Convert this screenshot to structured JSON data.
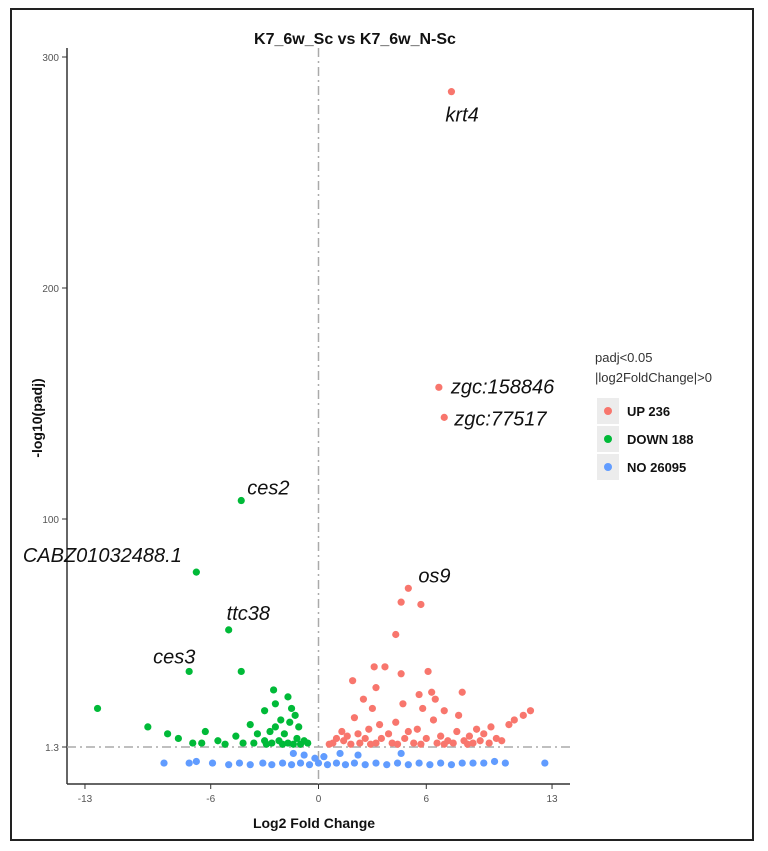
{
  "chart_data": {
    "type": "scatter",
    "title": "K7_6w_Sc vs K7_6w_N-Sc",
    "xlabel": "Log2 Fold Change",
    "ylabel": "-log10(padj)",
    "xlim": [
      -14,
      14
    ],
    "ylim": [
      -1,
      302
    ],
    "x_ticks": [
      -13,
      -6,
      0,
      6,
      13
    ],
    "y_ticks": [
      1.3,
      100,
      200,
      300
    ],
    "reference_lines": {
      "x": 0,
      "y": 1.3
    },
    "grid": false,
    "legend": {
      "placement": "right",
      "title_lines": [
        "padj<0.05",
        "|log2FoldChange|>0"
      ],
      "entries": [
        {
          "label": "UP 236",
          "color": "#F8766D"
        },
        {
          "label": "DOWN 188",
          "color": "#00BA38"
        },
        {
          "label": "NO 26095",
          "color": "#619CFF"
        }
      ]
    },
    "series": [
      {
        "name": "UP 236",
        "color": "#F8766D",
        "points": [
          [
            7.4,
            285
          ],
          [
            6.7,
            157
          ],
          [
            7.0,
            144
          ],
          [
            5.0,
            70
          ],
          [
            4.6,
            64
          ],
          [
            5.7,
            63
          ],
          [
            4.3,
            50
          ],
          [
            3.7,
            36
          ],
          [
            4.6,
            33
          ],
          [
            6.1,
            34
          ],
          [
            3.1,
            36
          ],
          [
            5.6,
            24
          ],
          [
            6.3,
            25
          ],
          [
            8.0,
            25
          ],
          [
            3.2,
            27
          ],
          [
            6.5,
            22
          ],
          [
            1.9,
            30
          ],
          [
            2.5,
            22
          ],
          [
            3.0,
            18
          ],
          [
            4.7,
            20
          ],
          [
            5.8,
            18
          ],
          [
            7.0,
            17
          ],
          [
            7.8,
            15
          ],
          [
            2.0,
            14
          ],
          [
            3.4,
            11
          ],
          [
            4.3,
            12
          ],
          [
            6.4,
            13
          ],
          [
            8.8,
            9
          ],
          [
            9.6,
            10
          ],
          [
            10.9,
            13
          ],
          [
            10.6,
            11
          ],
          [
            11.8,
            17
          ],
          [
            11.4,
            15
          ],
          [
            1.3,
            8
          ],
          [
            2.2,
            7
          ],
          [
            2.8,
            9
          ],
          [
            3.9,
            7
          ],
          [
            5.0,
            8
          ],
          [
            5.5,
            9
          ],
          [
            6.8,
            6
          ],
          [
            7.7,
            8
          ],
          [
            8.4,
            6
          ],
          [
            9.2,
            7
          ],
          [
            9.9,
            5
          ],
          [
            1.0,
            5
          ],
          [
            1.6,
            6
          ],
          [
            2.6,
            5
          ],
          [
            3.5,
            5
          ],
          [
            4.8,
            5
          ],
          [
            6.0,
            5
          ],
          [
            7.2,
            4
          ],
          [
            8.1,
            4
          ],
          [
            9.0,
            4
          ],
          [
            0.8,
            3
          ],
          [
            1.4,
            4
          ],
          [
            2.3,
            3
          ],
          [
            3.2,
            3
          ],
          [
            4.1,
            3
          ],
          [
            5.3,
            3
          ],
          [
            6.6,
            3
          ],
          [
            7.5,
            3
          ],
          [
            8.6,
            3
          ],
          [
            9.5,
            3
          ],
          [
            10.2,
            4
          ],
          [
            0.6,
            2.5
          ],
          [
            1.8,
            2.5
          ],
          [
            2.9,
            2.5
          ],
          [
            4.4,
            2.5
          ],
          [
            5.7,
            2.5
          ],
          [
            7.0,
            2.5
          ],
          [
            8.3,
            2.5
          ]
        ]
      },
      {
        "name": "DOWN 188",
        "color": "#00BA38",
        "points": [
          [
            -4.3,
            108
          ],
          [
            -6.8,
            77
          ],
          [
            -5.0,
            52
          ],
          [
            -7.2,
            34
          ],
          [
            -4.3,
            34
          ],
          [
            -12.3,
            18
          ],
          [
            -9.5,
            10
          ],
          [
            -8.4,
            7
          ],
          [
            -7.8,
            5
          ],
          [
            -2.5,
            26
          ],
          [
            -1.7,
            23
          ],
          [
            -2.4,
            20
          ],
          [
            -1.5,
            18
          ],
          [
            -3.0,
            17
          ],
          [
            -1.3,
            15
          ],
          [
            -2.1,
            13
          ],
          [
            -1.6,
            12
          ],
          [
            -2.4,
            10
          ],
          [
            -1.1,
            10
          ],
          [
            -3.8,
            11
          ],
          [
            -2.7,
            8
          ],
          [
            -3.4,
            7
          ],
          [
            -1.9,
            7
          ],
          [
            -4.6,
            6
          ],
          [
            -6.3,
            8
          ],
          [
            -5.6,
            4
          ],
          [
            -6.5,
            3
          ],
          [
            -1.2,
            5
          ],
          [
            -0.8,
            4
          ],
          [
            -2.2,
            4
          ],
          [
            -3.0,
            4
          ],
          [
            -1.7,
            3
          ],
          [
            -2.6,
            3
          ],
          [
            -3.6,
            3
          ],
          [
            -4.2,
            3
          ],
          [
            -1.0,
            2.5
          ],
          [
            -1.4,
            2.5
          ],
          [
            -2.0,
            2.5
          ],
          [
            -2.9,
            2.5
          ],
          [
            -0.6,
            3
          ],
          [
            -7.0,
            3
          ],
          [
            -5.2,
            2.5
          ]
        ]
      },
      {
        "name": "NO 26095",
        "color": "#619CFF",
        "points": [
          [
            -8.6,
            0.3
          ],
          [
            -7.2,
            0.3
          ],
          [
            -6.8,
            0.4
          ],
          [
            -5.9,
            0.3
          ],
          [
            -5.0,
            0.2
          ],
          [
            -4.4,
            0.3
          ],
          [
            -3.8,
            0.2
          ],
          [
            -3.1,
            0.3
          ],
          [
            -2.6,
            0.2
          ],
          [
            -2.0,
            0.3
          ],
          [
            -1.5,
            0.2
          ],
          [
            -1.0,
            0.3
          ],
          [
            -0.5,
            0.2
          ],
          [
            0.0,
            0.3
          ],
          [
            0.5,
            0.2
          ],
          [
            1.0,
            0.3
          ],
          [
            1.5,
            0.2
          ],
          [
            2.0,
            0.3
          ],
          [
            2.6,
            0.2
          ],
          [
            3.2,
            0.3
          ],
          [
            3.8,
            0.2
          ],
          [
            4.4,
            0.3
          ],
          [
            5.0,
            0.2
          ],
          [
            5.6,
            0.3
          ],
          [
            6.2,
            0.2
          ],
          [
            6.8,
            0.3
          ],
          [
            7.4,
            0.2
          ],
          [
            8.0,
            0.3
          ],
          [
            8.6,
            0.3
          ],
          [
            9.2,
            0.3
          ],
          [
            9.8,
            0.4
          ],
          [
            10.4,
            0.3
          ],
          [
            12.6,
            0.3
          ],
          [
            -0.2,
            0.6
          ],
          [
            0.3,
            0.7
          ],
          [
            -0.8,
            0.8
          ],
          [
            1.2,
            0.9
          ],
          [
            -1.4,
            0.9
          ],
          [
            2.2,
            0.8
          ],
          [
            4.6,
            0.9
          ]
        ]
      }
    ],
    "annotations": [
      {
        "text": "krt4",
        "x": 7.4,
        "y": 285
      },
      {
        "text": "zgc:158846",
        "x": 6.7,
        "y": 157
      },
      {
        "text": "zgc:77517",
        "x": 7.0,
        "y": 144
      },
      {
        "text": "ces2",
        "x": -4.3,
        "y": 108
      },
      {
        "text": "CABZ01032488.1",
        "x": -6.8,
        "y": 77
      },
      {
        "text": "ttc38",
        "x": -5.0,
        "y": 52
      },
      {
        "text": "ces3",
        "x": -7.2,
        "y": 34
      },
      {
        "text": "os9",
        "x": 5.0,
        "y": 70
      }
    ]
  }
}
